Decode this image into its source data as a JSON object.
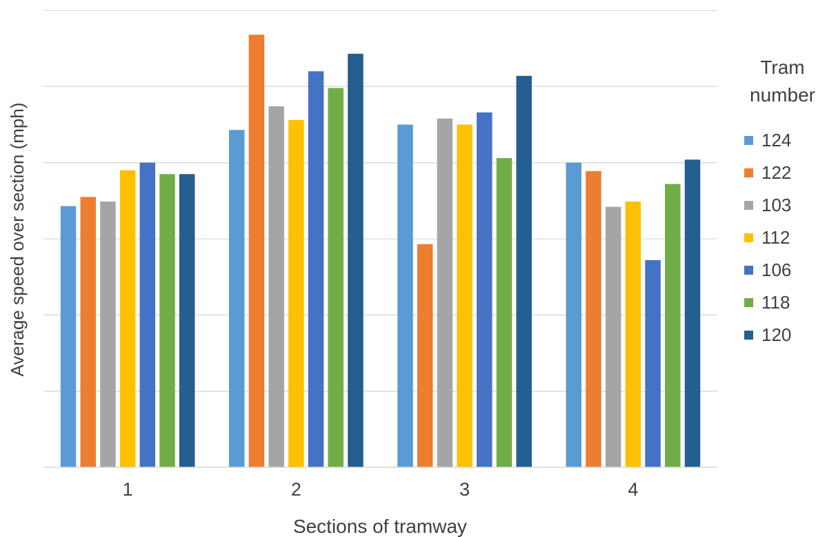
{
  "chart_data": {
    "type": "bar",
    "xlabel": "Sections of tramway",
    "ylabel": "Average speed over section (mph)",
    "categories": [
      "1",
      "2",
      "3",
      "4"
    ],
    "ylim": [
      0,
      6
    ],
    "grid": true,
    "y_tick_labels_shown": false,
    "legend_title": "Tram number",
    "legend_title_lines": [
      "Tram",
      "number"
    ],
    "legend_position": "right",
    "series": [
      {
        "name": "124",
        "color": "#5B9BD5",
        "values": [
          3.43,
          4.43,
          4.5,
          4.0
        ]
      },
      {
        "name": "122",
        "color": "#ED7D31",
        "values": [
          3.55,
          5.68,
          2.93,
          3.89
        ]
      },
      {
        "name": "103",
        "color": "#A5A5A5",
        "values": [
          3.49,
          4.74,
          4.58,
          3.42
        ]
      },
      {
        "name": "112",
        "color": "#FFC000",
        "values": [
          3.9,
          4.56,
          4.5,
          3.49
        ]
      },
      {
        "name": "106",
        "color": "#4472C4",
        "values": [
          4.0,
          5.2,
          4.66,
          2.72
        ]
      },
      {
        "name": "118",
        "color": "#70AD47",
        "values": [
          3.85,
          4.98,
          4.06,
          3.72
        ]
      },
      {
        "name": "120",
        "color": "#255E91",
        "values": [
          3.85,
          5.43,
          5.14,
          4.04
        ]
      }
    ]
  }
}
